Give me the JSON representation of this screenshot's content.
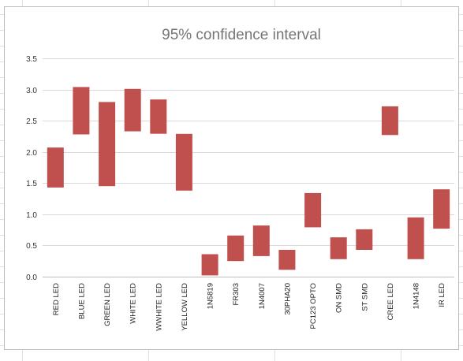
{
  "chart_data": {
    "type": "bar",
    "subtype": "floating-range",
    "title": "95% confidence interval",
    "xlabel": "",
    "ylabel": "",
    "ylim": [
      0,
      3.5
    ],
    "yticks": [
      "0.0",
      "0.5",
      "1.0",
      "1.5",
      "2.0",
      "2.5",
      "3.0",
      "3.5"
    ],
    "grid": true,
    "legend": "none",
    "bar_color": "#c0504d",
    "categories": [
      "RED LED",
      "BLUE LED",
      "GREEN LED",
      "WHITE LED",
      "WWHITE LED",
      "YELLOW LED",
      "1N5819",
      "FR303",
      "1N4007",
      "30PHA20",
      "PC123 OPTO",
      "ON SMD",
      "ST SMD",
      "CREE LED",
      "1N4148",
      "IR LED"
    ],
    "low": [
      1.43,
      2.28,
      1.45,
      2.33,
      2.29,
      1.38,
      0.02,
      0.25,
      0.33,
      0.11,
      0.79,
      0.28,
      0.43,
      2.27,
      0.28,
      0.77
    ],
    "high": [
      2.07,
      3.04,
      2.8,
      3.01,
      2.84,
      2.29,
      0.36,
      0.66,
      0.82,
      0.43,
      1.34,
      0.63,
      0.76,
      2.73,
      0.95,
      1.4
    ]
  }
}
